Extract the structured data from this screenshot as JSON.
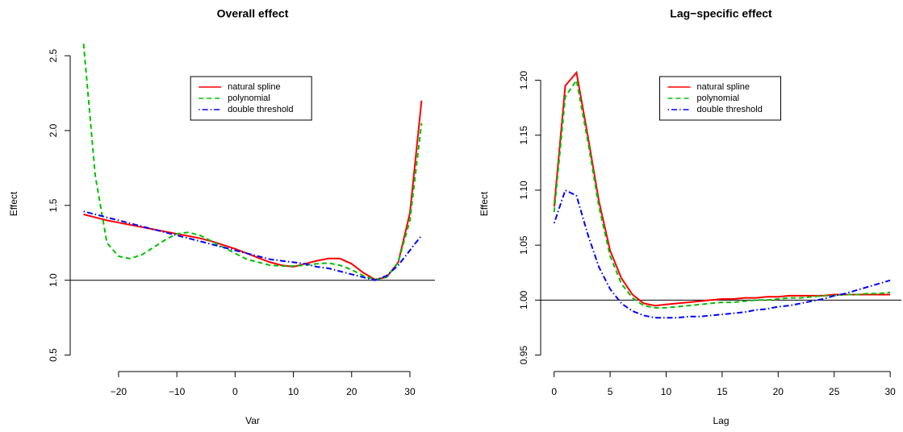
{
  "chart_data": [
    {
      "type": "line",
      "title": "Overall effect",
      "xlabel": "Var",
      "ylabel": "Effect",
      "x": [
        -26,
        -24,
        -22,
        -20,
        -18,
        -16,
        -14,
        -12,
        -10,
        -8,
        -6,
        -4,
        -2,
        0,
        2,
        4,
        6,
        8,
        10,
        12,
        14,
        16,
        18,
        20,
        22,
        24,
        26,
        28,
        30,
        32
      ],
      "series": [
        {
          "name": "natural spline",
          "color": "#ff0000",
          "dash": "solid",
          "values": [
            1.44,
            1.42,
            1.4,
            1.385,
            1.37,
            1.355,
            1.34,
            1.325,
            1.31,
            1.295,
            1.28,
            1.26,
            1.235,
            1.21,
            1.18,
            1.15,
            1.12,
            1.1,
            1.09,
            1.11,
            1.13,
            1.145,
            1.145,
            1.11,
            1.05,
            1.005,
            1.02,
            1.12,
            1.45,
            2.2
          ]
        },
        {
          "name": "polynomial",
          "color": "#00c000",
          "dash": "dashed",
          "values": [
            2.58,
            1.7,
            1.25,
            1.16,
            1.145,
            1.17,
            1.22,
            1.27,
            1.31,
            1.32,
            1.3,
            1.26,
            1.22,
            1.18,
            1.14,
            1.12,
            1.1,
            1.095,
            1.095,
            1.1,
            1.11,
            1.115,
            1.1,
            1.07,
            1.03,
            1.005,
            1.02,
            1.12,
            1.4,
            2.05
          ]
        },
        {
          "name": "double threshold",
          "color": "#0000ff",
          "dash": "dotdash",
          "values": [
            1.46,
            1.44,
            1.42,
            1.4,
            1.38,
            1.36,
            1.34,
            1.32,
            1.3,
            1.28,
            1.26,
            1.24,
            1.22,
            1.2,
            1.18,
            1.16,
            1.14,
            1.13,
            1.12,
            1.11,
            1.09,
            1.08,
            1.06,
            1.04,
            1.02,
            1.0,
            1.03,
            1.1,
            1.2,
            1.3
          ]
        }
      ],
      "hline": 1,
      "xlim": [
        -28.3,
        34.3
      ],
      "xticks": [
        {
          "value": -20,
          "label": "−20"
        },
        {
          "value": -10,
          "label": "−10"
        },
        0,
        10,
        20,
        30
      ],
      "ylim": [
        0.39,
        2.63
      ],
      "yticks": [
        0.5,
        {
          "value": 1,
          "label": "1.0"
        },
        1.5,
        {
          "value": 2,
          "label": "2.0"
        },
        2.5
      ],
      "legend": "top"
    },
    {
      "type": "line",
      "title": "Lag−specific effect",
      "xlabel": "Lag",
      "ylabel": "Effect",
      "x": [
        0,
        1,
        2,
        3,
        4,
        5,
        6,
        7,
        8,
        9,
        10,
        11,
        12,
        13,
        14,
        15,
        16,
        17,
        18,
        19,
        20,
        21,
        22,
        23,
        24,
        25,
        26,
        27,
        28,
        29,
        30
      ],
      "series": [
        {
          "name": "natural spline",
          "color": "#ff0000",
          "dash": "solid",
          "values": [
            1.085,
            1.195,
            1.207,
            1.15,
            1.09,
            1.045,
            1.02,
            1.005,
            0.997,
            0.995,
            0.996,
            0.997,
            0.998,
            0.999,
            1.0,
            1.001,
            1.001,
            1.002,
            1.002,
            1.003,
            1.003,
            1.004,
            1.004,
            1.004,
            1.004,
            1.005,
            1.005,
            1.005,
            1.005,
            1.005,
            1.005
          ]
        },
        {
          "name": "polynomial",
          "color": "#00c000",
          "dash": "dashed",
          "values": [
            1.08,
            1.185,
            1.2,
            1.145,
            1.085,
            1.04,
            1.015,
            1.002,
            0.995,
            0.993,
            0.993,
            0.994,
            0.995,
            0.996,
            0.997,
            0.998,
            0.998,
            0.999,
            1.0,
            1.0,
            1.001,
            1.002,
            1.002,
            1.003,
            1.004,
            1.004,
            1.005,
            1.005,
            1.006,
            1.006,
            1.007
          ]
        },
        {
          "name": "double threshold",
          "color": "#0000ff",
          "dash": "dotdash",
          "values": [
            1.07,
            1.1,
            1.095,
            1.06,
            1.03,
            1.01,
            0.997,
            0.99,
            0.986,
            0.984,
            0.984,
            0.984,
            0.985,
            0.985,
            0.986,
            0.987,
            0.988,
            0.989,
            0.991,
            0.992,
            0.994,
            0.995,
            0.997,
            0.999,
            1.001,
            1.004,
            1.006,
            1.009,
            1.012,
            1.015,
            1.018
          ]
        }
      ],
      "hline": 1,
      "xlim": [
        -1.2,
        31.0
      ],
      "xticks": [
        0,
        5,
        10,
        15,
        20,
        25,
        30
      ],
      "ylim": [
        0.935,
        1.24
      ],
      "yticks": [
        0.95,
        {
          "value": 1,
          "label": "1.00"
        },
        1.05,
        {
          "value": 1.1,
          "label": "1.10"
        },
        1.15,
        {
          "value": 1.2,
          "label": "1.20"
        }
      ],
      "legend": "top"
    }
  ]
}
